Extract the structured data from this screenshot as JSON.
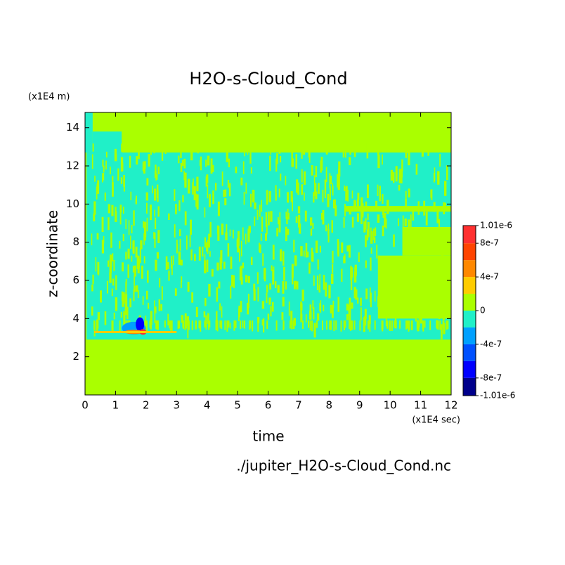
{
  "chart_data": {
    "type": "contour",
    "title": "H2O-s-Cloud_Cond",
    "x_label": "time",
    "y_label": "z-coordinate",
    "x_unit": "(x1E4 sec)",
    "y_unit": "(x1E4 m)",
    "source": "./jupiter_H2O-s-Cloud_Cond.nc",
    "xlim": [
      0,
      12
    ],
    "ylim": [
      0,
      14.8
    ],
    "xticks": [
      0,
      1,
      2,
      3,
      4,
      5,
      6,
      7,
      8,
      9,
      10,
      11,
      12
    ],
    "yticks": [
      2,
      4,
      6,
      8,
      10,
      12,
      14
    ],
    "colorbar": {
      "levels": [
        -1.01e-06,
        -8e-07,
        -6e-07,
        -4e-07,
        -2e-07,
        0,
        2e-07,
        4e-07,
        6e-07,
        8e-07,
        1.01e-06
      ],
      "colors": [
        "#00008b",
        "#0000ff",
        "#0050ff",
        "#00a0ff",
        "#20f0c8",
        "#aaff00",
        "#ffcc00",
        "#ff8800",
        "#ff4400",
        "#ff3030"
      ],
      "ticks": [
        {
          "value": 1.01e-06,
          "label": "1.01e-6"
        },
        {
          "value": 8e-07,
          "label": "8e-7"
        },
        {
          "value": 4e-07,
          "label": "4e-7"
        },
        0,
        {
          "value": -4e-07,
          "label": "-4e-7"
        },
        {
          "value": -8e-07,
          "label": "-8e-7"
        },
        {
          "value": -1.01e-06,
          "label": "-1.01e-6"
        }
      ]
    }
  }
}
